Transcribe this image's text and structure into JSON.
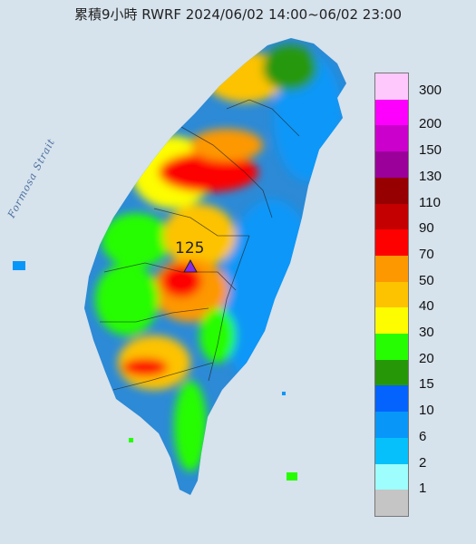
{
  "title": "累積9小時 RWRF 2024/06/02 14:00~06/02 23:00",
  "map_label": "Formosa Strait",
  "peak_value": "125",
  "colors": {
    "sea": "#d6e2ec",
    "land_base": "#2c8ad6",
    "marker": "#8a2be2"
  },
  "legend": {
    "labels": [
      "300",
      "200",
      "150",
      "130",
      "110",
      "90",
      "70",
      "50",
      "40",
      "30",
      "20",
      "15",
      "10",
      "6",
      "2",
      "1"
    ],
    "colors": [
      "#fec8fc",
      "#fd00fd",
      "#cc00cc",
      "#9b009b",
      "#960000",
      "#c40000",
      "#fd0000",
      "#fd9800",
      "#fdc300",
      "#fdfd00",
      "#26fd02",
      "#269807",
      "#0463fd",
      "#0897f8",
      "#06c0fc",
      "#9efdfd",
      "#c5c5c5"
    ]
  }
}
